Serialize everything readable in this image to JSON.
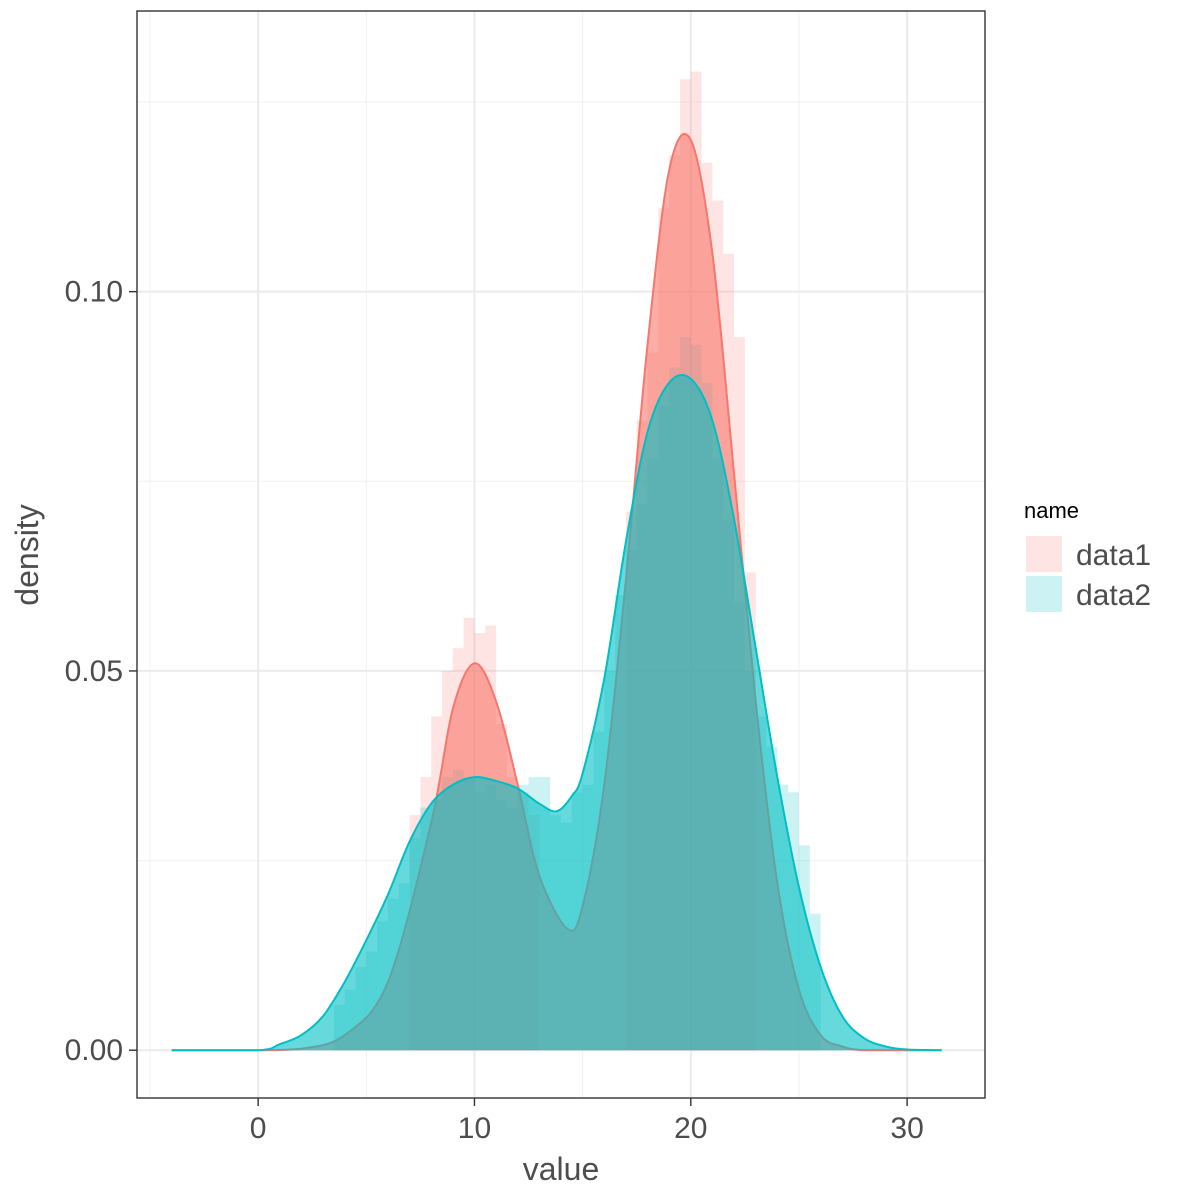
{
  "chart_data": {
    "type": "area",
    "xlabel": "value",
    "ylabel": "density",
    "xlim": [
      -5.6,
      33.6
    ],
    "ylim": [
      -0.0063,
      0.137
    ],
    "x_ticks": [
      0,
      10,
      20,
      30
    ],
    "x_tick_labels": [
      "0",
      "10",
      "20",
      "30"
    ],
    "y_ticks": [
      0.0,
      0.05,
      0.1
    ],
    "y_tick_labels": [
      "0.00",
      "0.05",
      "0.10"
    ],
    "grid": true,
    "legend": {
      "title": "name",
      "position": "right"
    },
    "series": [
      {
        "name": "data1",
        "color": "#F8766D",
        "density": {
          "x": [
            -4,
            0,
            2,
            4,
            6,
            8,
            9,
            10,
            11,
            12,
            13,
            14.3,
            15,
            16,
            17,
            18,
            19,
            20,
            21,
            22,
            23,
            24,
            25,
            26,
            27,
            28,
            30,
            31.6
          ],
          "y": [
            0,
            0,
            0.0002,
            0.002,
            0.009,
            0.03,
            0.045,
            0.051,
            0.046,
            0.035,
            0.023,
            0.016,
            0.019,
            0.035,
            0.062,
            0.093,
            0.116,
            0.12,
            0.105,
            0.076,
            0.046,
            0.022,
            0.008,
            0.002,
            0.0005,
            0,
            0,
            0
          ]
        },
        "histogram": {
          "bin_width": 0.5,
          "x": [
            7.25,
            7.75,
            8.25,
            8.75,
            9.25,
            9.75,
            10.25,
            10.75,
            11.25,
            11.75,
            12.25,
            12.75,
            17.25,
            17.75,
            18.25,
            18.75,
            19.25,
            19.75,
            20.25,
            20.75,
            21.25,
            21.75,
            22.25,
            22.75
          ],
          "y": [
            0.031,
            0.036,
            0.044,
            0.05,
            0.053,
            0.057,
            0.055,
            0.056,
            0.043,
            0.036,
            0.034,
            0.031,
            0.071,
            0.083,
            0.092,
            0.111,
            0.118,
            0.128,
            0.129,
            0.117,
            0.112,
            0.105,
            0.094,
            0.063
          ]
        }
      },
      {
        "name": "data2",
        "color": "#00BFC4",
        "density": {
          "x": [
            -4,
            0,
            1,
            2,
            3,
            4,
            5,
            6,
            7,
            8,
            9,
            10,
            11,
            12,
            13,
            13.8,
            14.5,
            15,
            16,
            17,
            18,
            19,
            20,
            21,
            22,
            23,
            24,
            25,
            26,
            27,
            28,
            29,
            30,
            31.6
          ],
          "y": [
            0,
            0,
            0.0008,
            0.002,
            0.0045,
            0.009,
            0.0145,
            0.0205,
            0.0275,
            0.0325,
            0.035,
            0.036,
            0.0355,
            0.0345,
            0.0325,
            0.0315,
            0.0335,
            0.0365,
            0.049,
            0.067,
            0.0815,
            0.088,
            0.0885,
            0.083,
            0.07,
            0.053,
            0.036,
            0.0215,
            0.011,
            0.0045,
            0.0016,
            0.0005,
            0.0001,
            0
          ]
        },
        "histogram": {
          "bin_width": 0.5,
          "x": [
            3.75,
            4.25,
            4.75,
            5.25,
            5.75,
            6.25,
            6.75,
            7.25,
            7.75,
            8.25,
            8.75,
            9.25,
            9.75,
            10.25,
            10.75,
            11.25,
            11.75,
            12.25,
            12.75,
            13.25,
            13.75,
            14.25,
            14.75,
            15.25,
            15.75,
            16.25,
            16.75,
            17.25,
            17.75,
            18.25,
            18.75,
            19.25,
            19.75,
            20.25,
            20.75,
            21.25,
            21.75,
            22.25,
            22.75,
            23.25,
            23.75,
            24.25,
            24.75,
            25.25,
            25.75
          ],
          "y": [
            0.006,
            0.008,
            0.011,
            0.013,
            0.017,
            0.02,
            0.022,
            0.028,
            0.032,
            0.033,
            0.036,
            0.037,
            0.036,
            0.034,
            0.035,
            0.033,
            0.032,
            0.035,
            0.036,
            0.036,
            0.031,
            0.03,
            0.034,
            0.035,
            0.042,
            0.05,
            0.06,
            0.066,
            0.072,
            0.078,
            0.085,
            0.09,
            0.094,
            0.093,
            0.088,
            0.078,
            0.07,
            0.059,
            0.05,
            0.044,
            0.04,
            0.035,
            0.034,
            0.027,
            0.018
          ]
        }
      }
    ]
  }
}
